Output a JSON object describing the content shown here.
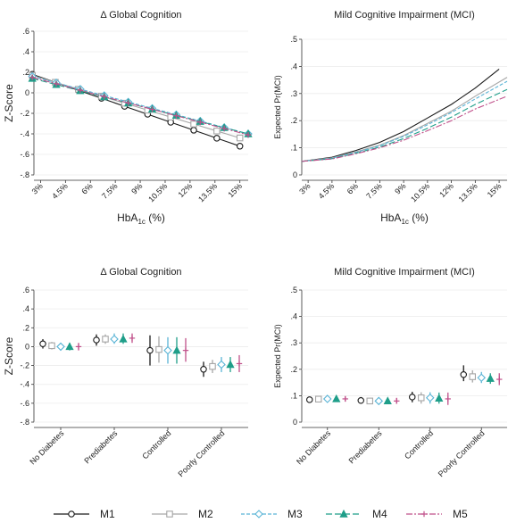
{
  "colors": {
    "M1": "#1a1a1a",
    "M2": "#a6a6a6",
    "M3": "#5ab4d6",
    "M4": "#1f9e89",
    "M5": "#c0508a"
  },
  "legend": [
    {
      "label": "M1",
      "marker": "circle",
      "dash": ""
    },
    {
      "label": "M2",
      "marker": "square",
      "dash": ""
    },
    {
      "label": "M3",
      "marker": "diamond",
      "dash": "4 2"
    },
    {
      "label": "M4",
      "marker": "triangle",
      "dash": "7 3"
    },
    {
      "label": "M5",
      "marker": "plus",
      "dash": "7 2 2 2"
    }
  ],
  "chart_data": [
    {
      "id": "p1",
      "type": "line",
      "title": "Δ Global Cognition",
      "xlabel": "HbA",
      "xlabel_sub": "1c",
      "xlabel_unit": " (%)",
      "ylabel": "Z-Score",
      "ylim": [
        -0.8,
        0.6
      ],
      "yticks": [
        0.6,
        0.4,
        0.2,
        0,
        -0.2,
        -0.4,
        -0.6,
        -0.8
      ],
      "ytick_labels": [
        ".6",
        ".4",
        ".2",
        "0",
        "-.2",
        "-.4",
        "-.6",
        "-.8"
      ],
      "xticks": [
        3,
        4.5,
        6,
        7.5,
        9,
        10.5,
        12,
        13.5,
        15
      ],
      "xtick_labels": [
        "3%",
        "4.5%",
        "6%",
        "7.5%",
        "9%",
        "10.5%",
        "12%",
        "13.5%",
        "15%"
      ],
      "xlim": [
        2.6,
        15.5
      ],
      "series": [
        {
          "name": "M1",
          "x": [
            2.5,
            15
          ],
          "y": [
            0.18,
            -0.52
          ],
          "markers": true
        },
        {
          "name": "M2",
          "x": [
            2.5,
            15
          ],
          "y": [
            0.17,
            -0.44
          ],
          "markers": true
        },
        {
          "name": "M3",
          "x": [
            2.5,
            15.5
          ],
          "y": [
            0.16,
            -0.4
          ],
          "markers": true
        },
        {
          "name": "M4",
          "x": [
            2.5,
            15.5
          ],
          "y": [
            0.14,
            -0.4
          ],
          "markers": true
        },
        {
          "name": "M5",
          "x": [
            2.5,
            15.5
          ],
          "y": [
            0.15,
            -0.41
          ],
          "markers": true
        }
      ]
    },
    {
      "id": "p2",
      "type": "line",
      "title": "Mild Cognitive Impairment (MCI)",
      "xlabel": "HbA",
      "xlabel_sub": "1c",
      "xlabel_unit": " (%)",
      "ylabel": "Expected Pr(MCI)",
      "ylim": [
        0,
        0.5
      ],
      "yticks": [
        0.5,
        0.4,
        0.3,
        0.2,
        0.1,
        0
      ],
      "ytick_labels": [
        ".5",
        ".4",
        ".3",
        ".2",
        ".1",
        "0"
      ],
      "xticks": [
        3,
        4.5,
        6,
        7.5,
        9,
        10.5,
        12,
        13.5,
        15
      ],
      "xtick_labels": [
        "3%",
        "4.5%",
        "6%",
        "7.5%",
        "9%",
        "10.5%",
        "12%",
        "13.5%",
        "15%"
      ],
      "xlim": [
        2.6,
        15.5
      ],
      "series": [
        {
          "name": "M1",
          "x": [
            2.6,
            4.5,
            6,
            7.5,
            9,
            10.5,
            12,
            13.5,
            15
          ],
          "y": [
            0.05,
            0.065,
            0.09,
            0.12,
            0.16,
            0.21,
            0.26,
            0.32,
            0.39
          ],
          "markers": false
        },
        {
          "name": "M2",
          "x": [
            2.6,
            4.5,
            6,
            7.5,
            9,
            10.5,
            12,
            13.5,
            15.5
          ],
          "y": [
            0.05,
            0.063,
            0.085,
            0.11,
            0.145,
            0.19,
            0.235,
            0.29,
            0.36
          ],
          "markers": false
        },
        {
          "name": "M3",
          "x": [
            2.6,
            4.5,
            6,
            7.5,
            9,
            10.5,
            12,
            13.5,
            15.5
          ],
          "y": [
            0.05,
            0.062,
            0.083,
            0.108,
            0.142,
            0.185,
            0.23,
            0.28,
            0.345
          ],
          "markers": false
        },
        {
          "name": "M4",
          "x": [
            2.6,
            4.5,
            6,
            7.5,
            9,
            10.5,
            12,
            13.5,
            15.5
          ],
          "y": [
            0.05,
            0.06,
            0.08,
            0.103,
            0.134,
            0.172,
            0.213,
            0.26,
            0.315
          ],
          "markers": false
        },
        {
          "name": "M5",
          "x": [
            2.6,
            4.5,
            6,
            7.5,
            9,
            10.5,
            12,
            13.5,
            15.5
          ],
          "y": [
            0.05,
            0.059,
            0.078,
            0.1,
            0.128,
            0.163,
            0.2,
            0.243,
            0.29
          ],
          "markers": false
        }
      ]
    },
    {
      "id": "p3",
      "type": "errorbar",
      "title": "Δ Global Cognition",
      "ylabel": "Z-Score",
      "ylim": [
        -0.8,
        0.6
      ],
      "yticks": [
        0.6,
        0.4,
        0.2,
        0,
        -0.2,
        -0.4,
        -0.6,
        -0.8
      ],
      "ytick_labels": [
        ".6",
        ".4",
        ".2",
        "0",
        "-.2",
        "-.4",
        "-.6",
        "-.8"
      ],
      "categories": [
        "No Diabetes",
        "Prediabetes",
        "Controlled",
        "Poorly Controlled"
      ],
      "series": [
        {
          "name": "M1",
          "values": [
            0.03,
            0.07,
            -0.04,
            -0.24
          ],
          "low": [
            -0.02,
            0.01,
            -0.2,
            -0.32
          ],
          "high": [
            0.08,
            0.13,
            0.12,
            -0.16
          ]
        },
        {
          "name": "M2",
          "values": [
            0.01,
            0.08,
            -0.03,
            -0.21
          ],
          "low": [
            -0.03,
            0.03,
            -0.17,
            -0.28
          ],
          "high": [
            0.05,
            0.13,
            0.11,
            -0.14
          ]
        },
        {
          "name": "M3",
          "values": [
            0.0,
            0.08,
            -0.04,
            -0.19
          ],
          "low": [
            -0.04,
            0.03,
            -0.18,
            -0.27
          ],
          "high": [
            0.04,
            0.14,
            0.1,
            -0.11
          ]
        },
        {
          "name": "M4",
          "values": [
            0.0,
            0.08,
            -0.04,
            -0.19
          ],
          "low": [
            -0.04,
            0.03,
            -0.18,
            -0.27
          ],
          "high": [
            0.04,
            0.14,
            0.1,
            -0.11
          ]
        },
        {
          "name": "M5",
          "values": [
            0.0,
            0.09,
            -0.04,
            -0.18
          ],
          "low": [
            -0.04,
            0.04,
            -0.16,
            -0.27
          ],
          "high": [
            0.04,
            0.14,
            0.09,
            -0.09
          ]
        }
      ]
    },
    {
      "id": "p4",
      "type": "errorbar",
      "title": "Mild Cognitive Impairment (MCI)",
      "ylabel": "Expected Pr(MCI)",
      "ylim": [
        0,
        0.5
      ],
      "yticks": [
        0.5,
        0.4,
        0.3,
        0.2,
        0.1,
        0
      ],
      "ytick_labels": [
        ".5",
        ".4",
        ".3",
        ".2",
        ".1",
        "0"
      ],
      "categories": [
        "No Diabetes",
        "Prediabetes",
        "Controlled",
        "Poorly Controlled"
      ],
      "series": [
        {
          "name": "M1",
          "values": [
            0.085,
            0.082,
            0.095,
            0.18
          ],
          "low": [
            0.075,
            0.07,
            0.075,
            0.155
          ],
          "high": [
            0.095,
            0.095,
            0.115,
            0.215
          ]
        },
        {
          "name": "M2",
          "values": [
            0.087,
            0.08,
            0.092,
            0.172
          ],
          "low": [
            0.077,
            0.07,
            0.07,
            0.15
          ],
          "high": [
            0.097,
            0.092,
            0.113,
            0.196
          ]
        },
        {
          "name": "M3",
          "values": [
            0.088,
            0.08,
            0.092,
            0.168
          ],
          "low": [
            0.078,
            0.07,
            0.07,
            0.148
          ],
          "high": [
            0.098,
            0.092,
            0.113,
            0.19
          ]
        },
        {
          "name": "M4",
          "values": [
            0.088,
            0.08,
            0.09,
            0.165
          ],
          "low": [
            0.078,
            0.07,
            0.07,
            0.145
          ],
          "high": [
            0.098,
            0.092,
            0.112,
            0.185
          ]
        },
        {
          "name": "M5",
          "values": [
            0.088,
            0.08,
            0.088,
            0.162
          ],
          "low": [
            0.078,
            0.07,
            0.065,
            0.14
          ],
          "high": [
            0.098,
            0.092,
            0.112,
            0.185
          ]
        }
      ]
    }
  ]
}
